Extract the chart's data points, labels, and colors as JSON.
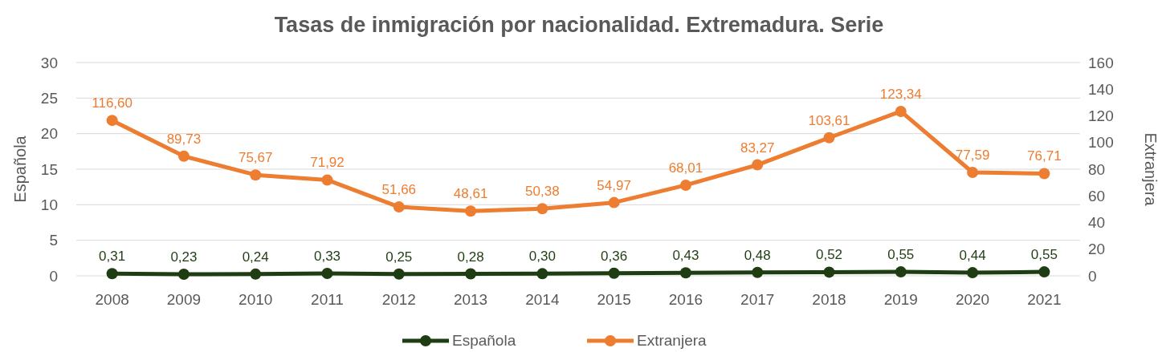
{
  "chart_data": {
    "type": "line",
    "title": "Tasas de inmigración por nacionalidad. Extremadura. Serie",
    "ylabel": "Española",
    "y2label": "Extranjera",
    "categories": [
      "2008",
      "2009",
      "2010",
      "2011",
      "2012",
      "2013",
      "2014",
      "2015",
      "2016",
      "2017",
      "2018",
      "2019",
      "2020",
      "2021"
    ],
    "series": [
      {
        "name": "Española",
        "color": "#1f3d12",
        "values": [
          0.31,
          0.23,
          0.24,
          0.33,
          0.25,
          0.28,
          0.3,
          0.36,
          0.43,
          0.48,
          0.52,
          0.55,
          0.44,
          0.55
        ],
        "value_labels": [
          "0,31",
          "0,23",
          "0,24",
          "0,33",
          "0,25",
          "0,28",
          "0,30",
          "0,36",
          "0,43",
          "0,48",
          "0,52",
          "0,55",
          "0,44",
          "0,55"
        ]
      },
      {
        "name": "Extranjera",
        "color": "#ed7d31",
        "axis": "y2",
        "values": [
          116.6,
          89.73,
          75.67,
          71.92,
          51.66,
          48.61,
          50.38,
          54.97,
          68.01,
          83.27,
          103.61,
          123.34,
          77.59,
          76.71
        ],
        "value_labels": [
          "116,60",
          "89,73",
          "75,67",
          "71,92",
          "51,66",
          "48,61",
          "50,38",
          "54,97",
          "68,01",
          "83,27",
          "103,61",
          "123,34",
          "77,59",
          "76,71"
        ]
      }
    ],
    "ylim": [
      0,
      30
    ],
    "yticks": [
      0,
      5,
      10,
      15,
      20,
      25,
      30
    ],
    "y2lim": [
      0,
      160
    ],
    "y2ticks": [
      0,
      20,
      40,
      60,
      80,
      100,
      120,
      140,
      160
    ],
    "grid": "y",
    "legend": "bottom",
    "marker": "circle",
    "line_style": "solid"
  }
}
